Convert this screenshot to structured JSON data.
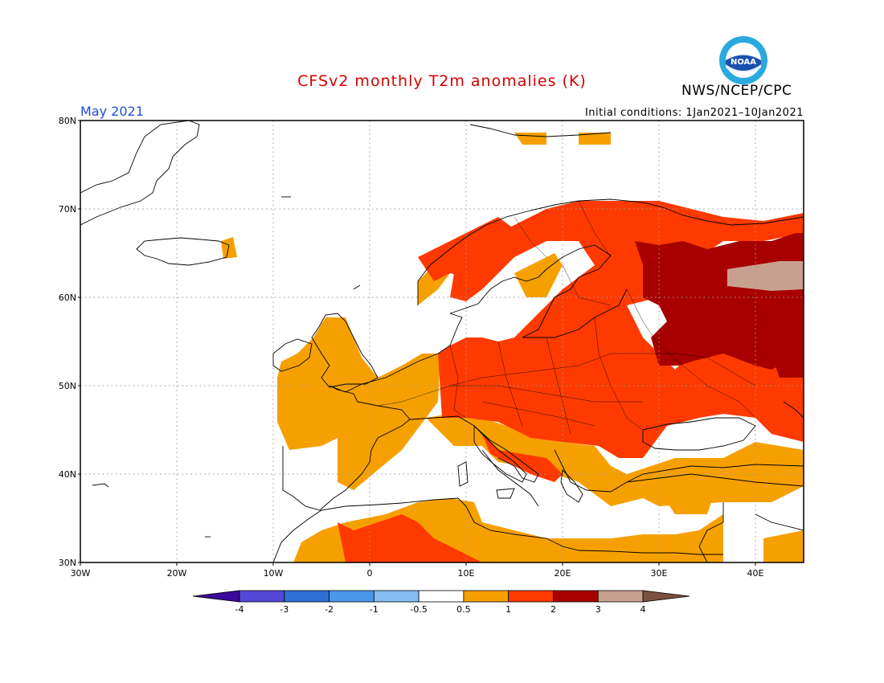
{
  "header": {
    "title": "CFSv2 monthly T2m anomalies (K)",
    "agency": "NWS/NCEP/CPC",
    "month": "May 2021",
    "initial_conditions": "Initial conditions: 1Jan2021–10Jan2021",
    "logo_text": "NOAA"
  },
  "map": {
    "lat_labels": [
      "80N",
      "70N",
      "60N",
      "50N",
      "40N",
      "30N"
    ],
    "lon_labels": [
      "30W",
      "20W",
      "10W",
      "0",
      "10E",
      "20E",
      "30E",
      "40E"
    ]
  },
  "colorbar": {
    "labels": [
      "-4",
      "-3",
      "-2",
      "-1",
      "-0.5",
      "0.5",
      "1",
      "2",
      "3",
      "4"
    ],
    "colors": [
      "#3c0a9c",
      "#5548d6",
      "#2f6fd6",
      "#4a97ea",
      "#86bdf2",
      "#ffffff",
      "#f6a000",
      "#ff3a00",
      "#a80000",
      "#c8a090",
      "#7a5040"
    ]
  },
  "legend_colors": {
    "land_outline": "#000000",
    "gridline": "#9a9a9a"
  }
}
